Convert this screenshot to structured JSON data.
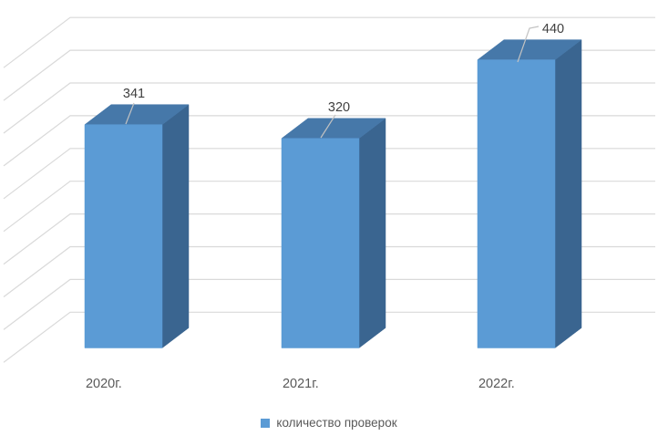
{
  "chart_data": {
    "type": "bar",
    "projection": "3d",
    "title": "",
    "categories": [
      "2020г.",
      "2021г.",
      "2022г."
    ],
    "series": [
      {
        "name": "количество проверок",
        "values": [
          341,
          320,
          440
        ]
      }
    ],
    "data_labels": [
      "341",
      "320",
      "440"
    ],
    "xlabel": "",
    "ylabel": "",
    "ylim": [
      0,
      450
    ],
    "gridline_step": 50,
    "grid": true,
    "axis_tick_labels_shown": false,
    "legend_position": "bottom"
  },
  "colors": {
    "bar_front": "#5B9BD5",
    "bar_top": "#4678A9",
    "bar_side": "#3A6590",
    "gridline": "#D9D9D9",
    "leader": "#C2C2C2",
    "data_label_text": "#404040",
    "axis_text": "#595959",
    "legend_text": "#595959",
    "background": "#FFFFFF"
  },
  "legend": {
    "items": [
      {
        "label": "количество проверок",
        "swatch_color": "#5B9BD5"
      }
    ]
  }
}
